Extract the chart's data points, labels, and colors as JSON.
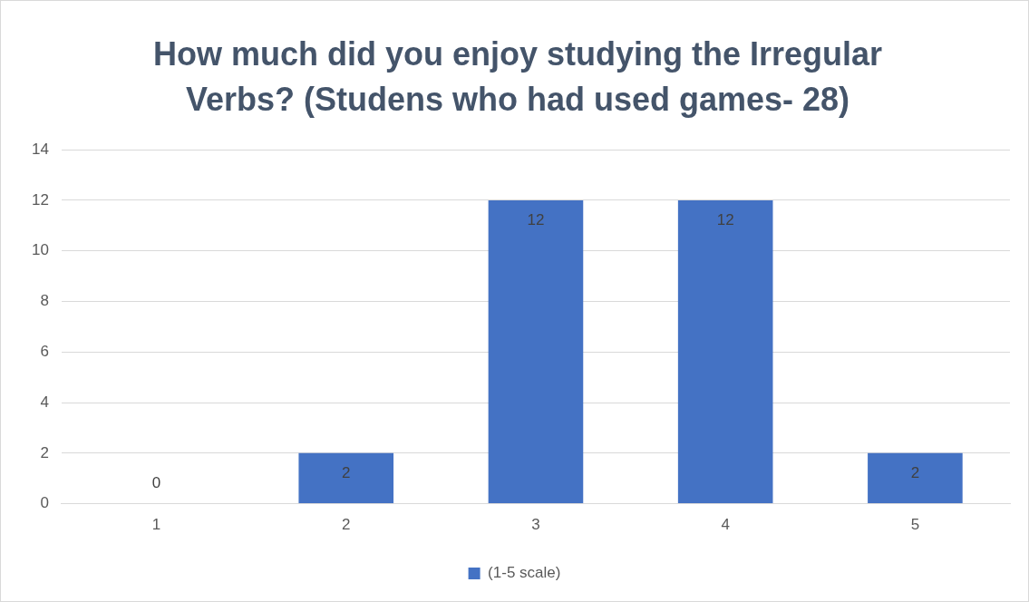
{
  "chart_data": {
    "type": "bar",
    "title": "How much did you enjoy studying the Irregular Verbs? (Studens who had used games- 28)",
    "categories": [
      "1",
      "2",
      "3",
      "4",
      "5"
    ],
    "series": [
      {
        "name": "(1-5 scale)",
        "color": "#4472c4",
        "values": [
          0,
          2,
          12,
          12,
          2
        ]
      }
    ],
    "ylim": [
      0,
      14
    ],
    "yticks": [
      0,
      2,
      4,
      6,
      8,
      10,
      12,
      14
    ],
    "grid": "y",
    "legend": "bottom",
    "data_labels": true
  }
}
